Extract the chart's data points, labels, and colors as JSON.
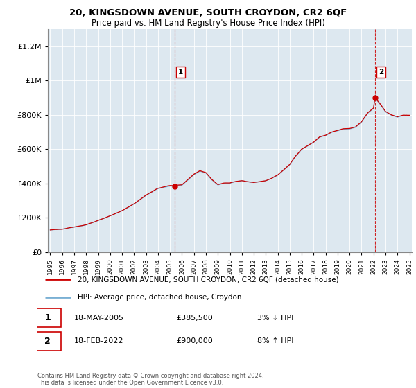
{
  "title": "20, KINGSDOWN AVENUE, SOUTH CROYDON, CR2 6QF",
  "subtitle": "Price paid vs. HM Land Registry's House Price Index (HPI)",
  "legend_line1": "20, KINGSDOWN AVENUE, SOUTH CROYDON, CR2 6QF (detached house)",
  "legend_line2": "HPI: Average price, detached house, Croydon",
  "transaction1_date": "18-MAY-2005",
  "transaction1_price": "£385,500",
  "transaction1_hpi": "3% ↓ HPI",
  "transaction2_date": "18-FEB-2022",
  "transaction2_price": "£900,000",
  "transaction2_hpi": "8% ↑ HPI",
  "footer": "Contains HM Land Registry data © Crown copyright and database right 2024.\nThis data is licensed under the Open Government Licence v3.0.",
  "sale_color": "#cc0000",
  "hpi_color": "#7ab0d4",
  "vline_color": "#cc0000",
  "chart_bg_color": "#dde8f0",
  "background_color": "#ffffff",
  "transaction1_x": 2005.38,
  "transaction2_x": 2022.12,
  "sale_values": [
    385500,
    900000
  ],
  "yticks": [
    0,
    200000,
    400000,
    600000,
    800000,
    1000000,
    1200000
  ],
  "ylim": [
    0,
    1300000
  ],
  "xlim": [
    1994.8,
    2025.2
  ]
}
